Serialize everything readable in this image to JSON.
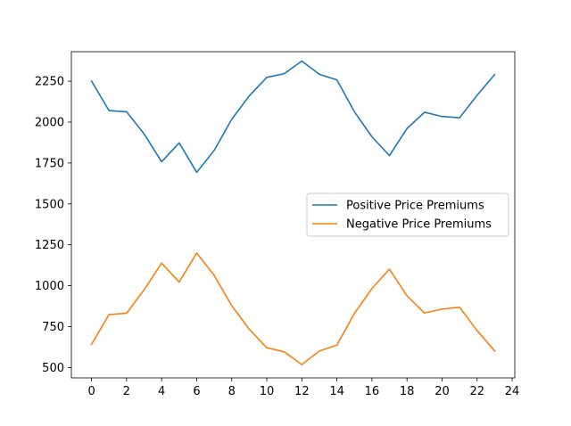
{
  "chart_data": {
    "type": "line",
    "title": "",
    "xlabel": "",
    "ylabel": "",
    "x": [
      0,
      1,
      2,
      3,
      4,
      5,
      6,
      7,
      8,
      9,
      10,
      11,
      12,
      13,
      14,
      15,
      16,
      17,
      18,
      19,
      20,
      21,
      22,
      23
    ],
    "xlim": [
      -1.15,
      24.15
    ],
    "ylim": [
      437,
      2430
    ],
    "xticks": [
      0,
      2,
      4,
      6,
      8,
      10,
      12,
      14,
      16,
      18,
      20,
      22,
      24
    ],
    "yticks": [
      500,
      750,
      1000,
      1250,
      1500,
      1750,
      2000,
      2250
    ],
    "grid": false,
    "legend_position": "center-right",
    "series": [
      {
        "name": "Positive Price Premiums",
        "color": "#1f77b4",
        "values": [
          2250,
          2070,
          2063,
          1928,
          1757,
          1873,
          1693,
          1827,
          2017,
          2160,
          2273,
          2296,
          2373,
          2292,
          2258,
          2063,
          1910,
          1795,
          1961,
          2060,
          2034,
          2026,
          2164,
          2290
        ]
      },
      {
        "name": "Negative Price Premiums",
        "color": "#ff7f0e",
        "values": [
          642,
          824,
          832,
          975,
          1138,
          1022,
          1200,
          1063,
          878,
          734,
          621,
          596,
          518,
          601,
          637,
          831,
          983,
          1101,
          938,
          833,
          857,
          869,
          726,
          602
        ]
      }
    ]
  }
}
